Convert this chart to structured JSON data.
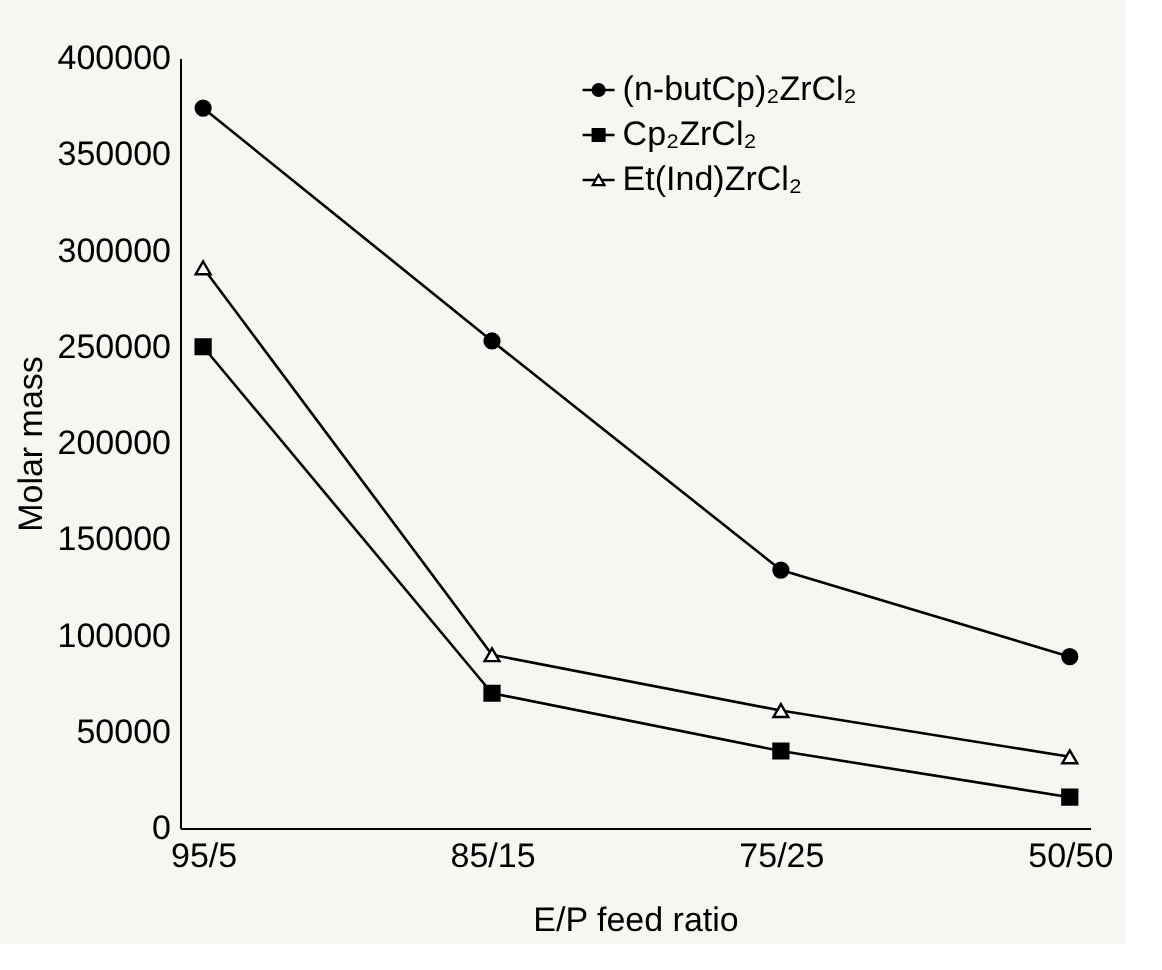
{
  "chart_data": {
    "type": "line",
    "xlabel": "E/P feed ratio",
    "ylabel": "Molar mass",
    "categories": [
      "95/5",
      "85/15",
      "75/25",
      "50/50"
    ],
    "ylim": [
      0,
      400000
    ],
    "yticks": [
      0,
      50000,
      100000,
      150000,
      200000,
      250000,
      300000,
      350000,
      400000
    ],
    "grid": false,
    "legend": "top right",
    "line_style": "solid",
    "series": [
      {
        "name": "(n-butCp)₂ZrCl₂",
        "color": "#000000",
        "marker": "circle",
        "values": [
          374000,
          253000,
          134000,
          89000
        ]
      },
      {
        "name": "Cp₂ZrCl₂",
        "color": "#000000",
        "marker": "square",
        "values": [
          250000,
          70000,
          40000,
          16000
        ]
      },
      {
        "name": "Et(Ind)ZrCl₂",
        "color": "#000000",
        "marker": "triangle",
        "values": [
          291000,
          90000,
          61000,
          37000
        ]
      }
    ]
  }
}
